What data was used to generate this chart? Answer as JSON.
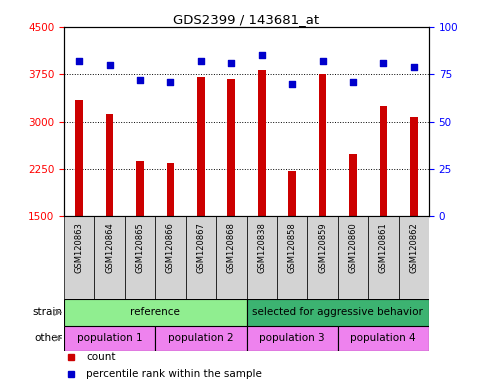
{
  "title": "GDS2399 / 143681_at",
  "samples": [
    "GSM120863",
    "GSM120864",
    "GSM120865",
    "GSM120866",
    "GSM120867",
    "GSM120868",
    "GSM120838",
    "GSM120858",
    "GSM120859",
    "GSM120860",
    "GSM120861",
    "GSM120862"
  ],
  "counts": [
    3340,
    3120,
    2370,
    2340,
    3700,
    3680,
    3820,
    2210,
    3750,
    2480,
    3250,
    3080
  ],
  "percentiles": [
    82,
    80,
    72,
    71,
    82,
    81,
    85,
    70,
    82,
    71,
    81,
    79
  ],
  "ylim_left": [
    1500,
    4500
  ],
  "ylim_right": [
    0,
    100
  ],
  "yticks_left": [
    1500,
    2250,
    3000,
    3750,
    4500
  ],
  "yticks_right": [
    0,
    25,
    50,
    75,
    100
  ],
  "bar_color": "#cc0000",
  "dot_color": "#0000cc",
  "strain_groups": [
    {
      "label": "reference",
      "start": 0,
      "end": 6,
      "color": "#90ee90"
    },
    {
      "label": "selected for aggressive behavior",
      "start": 6,
      "end": 12,
      "color": "#3cb371"
    }
  ],
  "other_groups": [
    {
      "label": "population 1",
      "start": 0,
      "end": 3,
      "color": "#ee82ee"
    },
    {
      "label": "population 2",
      "start": 3,
      "end": 6,
      "color": "#ee82ee"
    },
    {
      "label": "population 3",
      "start": 6,
      "end": 9,
      "color": "#ee82ee"
    },
    {
      "label": "population 4",
      "start": 9,
      "end": 12,
      "color": "#ee82ee"
    }
  ],
  "strain_label": "strain",
  "other_label": "other",
  "legend_count": "count",
  "legend_pct": "percentile rank within the sample",
  "grid_lines": [
    1500,
    2250,
    3000,
    3750
  ],
  "bar_bottom": 1500,
  "bar_width": 0.25
}
